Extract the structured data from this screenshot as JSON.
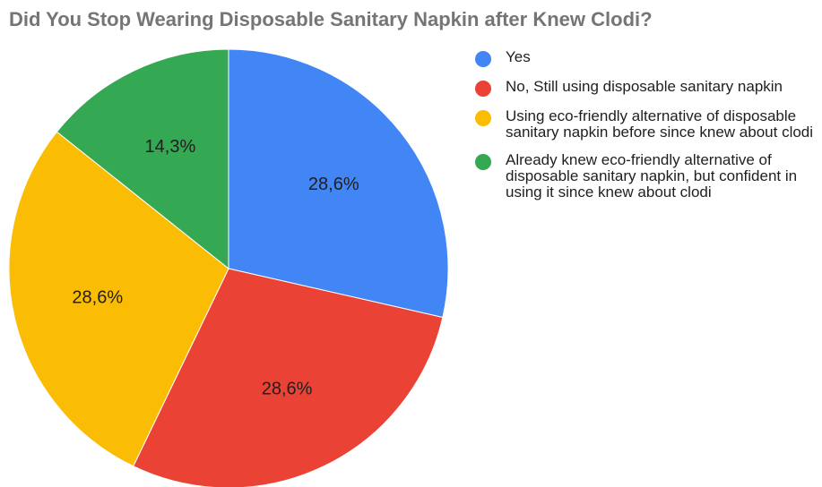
{
  "chart_data": {
    "type": "pie",
    "title": "Did You Stop Wearing Disposable Sanitary Napkin after Knew Clodi?",
    "slices": [
      {
        "label": "Yes",
        "value": 28.6,
        "display": "28,6%",
        "color": "#4285F4"
      },
      {
        "label": "No, Still using disposable sanitary napkin",
        "value": 28.6,
        "display": "28,6%",
        "color": "#EA4335"
      },
      {
        "label": "Using eco-friendly alternative of disposable sanitary napkin before since knew about clodi",
        "value": 28.6,
        "display": "28,6%",
        "color": "#FBBC04"
      },
      {
        "label": "Already knew eco-friendly alternative of disposable sanitary napkin, but confident in using it since knew about clodi",
        "value": 14.3,
        "display": "14,3%",
        "color": "#34A853"
      }
    ],
    "legend_position": "right"
  }
}
